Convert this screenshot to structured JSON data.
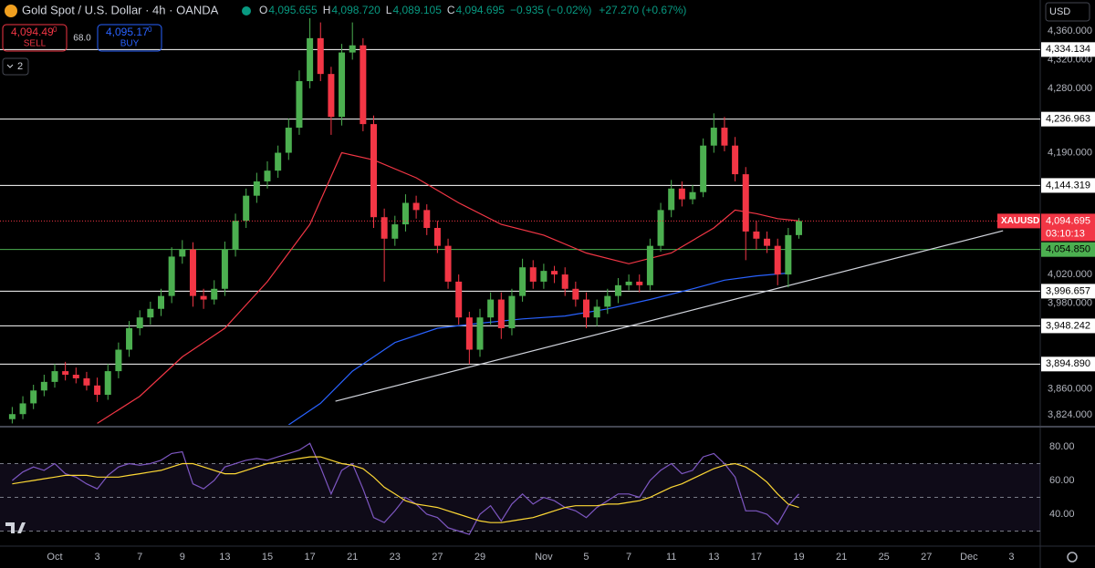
{
  "header": {
    "title": "Gold Spot / U.S. Dollar · 4h · OANDA",
    "ohlc": [
      {
        "label": "O",
        "value": "4,095.655"
      },
      {
        "label": "H",
        "value": "4,098.720"
      },
      {
        "label": "L",
        "value": "4,089.105"
      },
      {
        "label": "C",
        "value": "4,094.695"
      }
    ],
    "change": "−0.935 (−0.02%)",
    "change_day": "+27.270 (+0.67%)",
    "sell": {
      "price": "4,094.49",
      "fraction": "0",
      "label": "SELL"
    },
    "buy": {
      "price": "4,095.17",
      "fraction": "0",
      "label": "BUY"
    },
    "spread": "68.0",
    "collapse": "2",
    "currency": "USD"
  },
  "chart_data": [
    {
      "type": "candlestick",
      "up_color": "#4caf50",
      "down_color": "#f23645",
      "x": [
        -2,
        -1.5,
        -1,
        -0.5,
        0,
        0.5,
        1,
        1.5,
        2,
        2.5,
        3,
        3.5,
        4,
        4.5,
        5,
        5.5,
        6,
        6.5,
        7,
        7.5,
        8,
        8.5,
        9,
        9.5,
        10,
        10.5,
        11,
        11.5,
        12,
        12.5,
        13,
        13.5,
        14,
        14.5,
        15,
        15.5,
        16,
        16.5,
        17,
        17.5,
        18,
        18.5,
        19,
        19.5,
        20,
        20.5,
        21,
        21.5,
        22,
        22.5,
        23,
        23.5,
        24,
        24.5,
        25,
        25.5,
        26,
        26.5,
        27,
        27.5,
        28,
        28.5,
        29,
        29.5,
        30,
        30.5,
        31,
        31.5,
        32,
        32.5,
        33,
        33.5,
        34,
        34.5,
        35
      ],
      "open": [
        3818,
        3825,
        3840,
        3858,
        3870,
        3885,
        3880,
        3875,
        3865,
        3852,
        3885,
        3915,
        3945,
        3960,
        3972,
        3990,
        4045,
        4055,
        3990,
        3985,
        4000,
        4055,
        4095,
        4130,
        4150,
        4165,
        4190,
        4225,
        4290,
        4350,
        4300,
        4240,
        4330,
        4340,
        4230,
        4100,
        4070,
        4090,
        4120,
        4110,
        4085,
        4060,
        4010,
        3960,
        3915,
        3960,
        3985,
        3945,
        3990,
        4030,
        4010,
        4025,
        4020,
        4000,
        3985,
        3960,
        3975,
        3990,
        4005,
        4010,
        4005,
        4060,
        4110,
        4140,
        4125,
        4135,
        4200,
        4225,
        4200,
        4160,
        4080,
        4070,
        4060,
        4020,
        4075
      ],
      "high": [
        3835,
        3850,
        3866,
        3880,
        3895,
        3898,
        3890,
        3884,
        3876,
        3895,
        3925,
        3955,
        3970,
        3982,
        4000,
        4058,
        4068,
        4065,
        4000,
        4012,
        4066,
        4105,
        4140,
        4162,
        4178,
        4200,
        4238,
        4305,
        4378,
        4372,
        4310,
        4342,
        4372,
        4350,
        4242,
        4112,
        4102,
        4132,
        4130,
        4118,
        4095,
        4070,
        4020,
        3968,
        3972,
        3995,
        3995,
        4000,
        4042,
        4040,
        4035,
        4032,
        4030,
        4010,
        3995,
        3985,
        4000,
        4015,
        4020,
        4020,
        4070,
        4120,
        4152,
        4150,
        4145,
        4210,
        4245,
        4240,
        4212,
        4170,
        4095,
        4080,
        4070,
        4085,
        4098.72
      ],
      "low": [
        3812,
        3818,
        3832,
        3850,
        3862,
        3872,
        3868,
        3858,
        3842,
        3845,
        3875,
        3905,
        3935,
        3950,
        3962,
        3980,
        4035,
        3975,
        3972,
        3978,
        3990,
        4045,
        4085,
        4120,
        4140,
        4155,
        4180,
        4215,
        4280,
        4290,
        4215,
        4228,
        4320,
        4220,
        4085,
        4010,
        4060,
        4080,
        4098,
        4075,
        4050,
        4000,
        3950,
        3895,
        3905,
        3950,
        3930,
        3935,
        3982,
        4000,
        4000,
        4008,
        3990,
        3975,
        3945,
        3948,
        3965,
        3980,
        3998,
        3995,
        3998,
        4052,
        4100,
        4115,
        4118,
        4128,
        4190,
        4192,
        4150,
        4040,
        4055,
        4050,
        4005,
        4002,
        4070
      ],
      "close": [
        3825,
        3840,
        3858,
        3870,
        3885,
        3880,
        3875,
        3865,
        3852,
        3885,
        3915,
        3945,
        3960,
        3972,
        3990,
        4045,
        4055,
        3990,
        3985,
        4000,
        4055,
        4095,
        4130,
        4150,
        4165,
        4190,
        4225,
        4290,
        4350,
        4300,
        4240,
        4330,
        4340,
        4230,
        4100,
        4070,
        4090,
        4120,
        4110,
        4085,
        4060,
        4010,
        3960,
        3915,
        3960,
        3985,
        3945,
        3990,
        4030,
        4010,
        4025,
        4020,
        4000,
        3985,
        3960,
        3975,
        3990,
        4005,
        4010,
        4005,
        4060,
        4110,
        4140,
        4125,
        4135,
        4200,
        4225,
        4200,
        4160,
        4080,
        4070,
        4060,
        4020,
        4075,
        4094.695
      ],
      "lines": [
        {
          "color": "#f23645",
          "x": [
            2,
            4,
            6,
            8,
            10,
            12,
            13.5,
            15,
            17,
            19,
            21,
            23,
            25,
            27,
            29,
            31,
            32,
            33,
            34,
            35
          ],
          "values": [
            3812,
            3850,
            3905,
            3945,
            4010,
            4090,
            4190,
            4180,
            4155,
            4120,
            4090,
            4075,
            4050,
            4035,
            4050,
            4085,
            4110,
            4105,
            4098,
            4095
          ]
        },
        {
          "color": "#2962ff",
          "x": [
            11,
            12.5,
            14,
            16,
            18,
            20,
            22,
            24,
            26,
            28,
            30,
            31.5,
            33,
            34.5
          ],
          "values": [
            3810,
            3840,
            3885,
            3925,
            3945,
            3952,
            3958,
            3962,
            3972,
            3985,
            4000,
            4012,
            4018,
            4022
          ]
        },
        {
          "color": "#d1d4dc",
          "x": [
            13.2,
            44.6
          ],
          "values": [
            3843,
            4081
          ]
        }
      ],
      "levels": [
        {
          "value": 4334.134,
          "label": "4,334.134",
          "color": "#ffffff"
        },
        {
          "value": 4236.963,
          "label": "4,236.963",
          "color": "#ffffff"
        },
        {
          "value": 4144.319,
          "label": "4,144.319",
          "color": "#ffffff"
        },
        {
          "value": 4054.85,
          "label": "4,054.850",
          "color": "#4caf50"
        },
        {
          "value": 3996.657,
          "label": "3,996.657",
          "color": "#ffffff"
        },
        {
          "value": 3948.242,
          "label": "3,948.242",
          "color": "#ffffff"
        },
        {
          "value": 3894.89,
          "label": "3,894.890",
          "color": "#ffffff"
        }
      ],
      "last": {
        "value": 4094.695,
        "label": "4,094.695",
        "symbol": "XAUUSD",
        "countdown": "03:10:13",
        "color": "#f23645"
      },
      "xlim": [
        -2.575,
        46.352
      ],
      "xticks": [
        {
          "value": 0,
          "label": "Oct"
        },
        {
          "value": 2,
          "label": "3"
        },
        {
          "value": 4,
          "label": "7"
        },
        {
          "value": 6,
          "label": "9"
        },
        {
          "value": 8,
          "label": "13"
        },
        {
          "value": 10,
          "label": "15"
        },
        {
          "value": 12,
          "label": "17"
        },
        {
          "value": 14,
          "label": "21"
        },
        {
          "value": 16,
          "label": "23"
        },
        {
          "value": 18,
          "label": "27"
        },
        {
          "value": 20,
          "label": "29"
        },
        {
          "value": 23,
          "label": "Nov"
        },
        {
          "value": 25,
          "label": "5"
        },
        {
          "value": 27,
          "label": "7"
        },
        {
          "value": 29,
          "label": "11"
        },
        {
          "value": 31,
          "label": "13"
        },
        {
          "value": 33,
          "label": "17"
        },
        {
          "value": 35,
          "label": "19"
        },
        {
          "value": 37,
          "label": "21"
        },
        {
          "value": 39,
          "label": "25"
        },
        {
          "value": 41,
          "label": "27"
        },
        {
          "value": 43,
          "label": "Dec"
        },
        {
          "value": 45,
          "label": "3"
        }
      ],
      "ylim": [
        3810,
        4403.3
      ],
      "yticks": [
        {
          "value": 4360,
          "label": "4,360.000"
        },
        {
          "value": 4320,
          "label": "4,320.000"
        },
        {
          "value": 4280,
          "label": "4,280.000"
        },
        {
          "value": 4190,
          "label": "4,190.000"
        },
        {
          "value": 4020,
          "label": "4,020.000"
        },
        {
          "value": 3980,
          "label": "3,980.000"
        },
        {
          "value": 3860,
          "label": "3,860.000"
        },
        {
          "value": 3824,
          "label": "3,824.000"
        }
      ],
      "grid": false
    },
    {
      "type": "line",
      "band_color": "#7e57c2",
      "levels": [
        70,
        50,
        30
      ],
      "series": [
        {
          "color": "#7e57c2",
          "values": [
            60,
            65,
            68,
            66,
            70,
            64,
            62,
            58,
            55,
            63,
            68,
            70,
            69,
            70,
            72,
            76,
            77,
            58,
            55,
            60,
            68,
            70,
            72,
            73,
            72,
            74,
            76,
            78,
            82,
            68,
            52,
            66,
            70,
            55,
            38,
            35,
            42,
            50,
            46,
            40,
            38,
            32,
            30,
            28,
            40,
            45,
            36,
            46,
            52,
            46,
            50,
            48,
            44,
            42,
            38,
            44,
            48,
            52,
            52,
            50,
            60,
            66,
            70,
            64,
            66,
            74,
            76,
            70,
            62,
            42,
            42,
            40,
            34,
            45,
            52
          ]
        },
        {
          "color": "#fdd835",
          "values": [
            58,
            59,
            60,
            61,
            62,
            63,
            63,
            63,
            62,
            62,
            62,
            63,
            64,
            65,
            66,
            68,
            70,
            70,
            68,
            66,
            64,
            64,
            66,
            68,
            70,
            71,
            72,
            73,
            74,
            74,
            72,
            70,
            69,
            67,
            62,
            56,
            52,
            48,
            46,
            45,
            44,
            42,
            40,
            38,
            36,
            35,
            35,
            36,
            37,
            38,
            40,
            42,
            44,
            45,
            45,
            45,
            46,
            46,
            47,
            48,
            50,
            53,
            56,
            58,
            61,
            64,
            67,
            69,
            70,
            68,
            64,
            59,
            52,
            46,
            44
          ]
        }
      ],
      "ylim": [
        21.6,
        90.8
      ],
      "yticks": [
        {
          "value": 80,
          "label": "80.00"
        },
        {
          "value": 60,
          "label": "60.00"
        },
        {
          "value": 40,
          "label": "40.00"
        }
      ]
    }
  ]
}
